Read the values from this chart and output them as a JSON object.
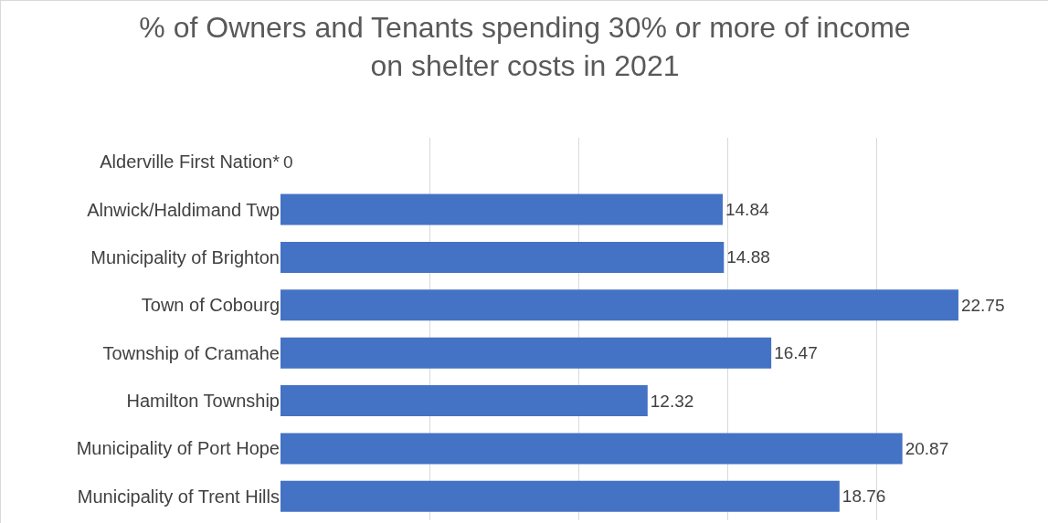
{
  "chart_data": {
    "type": "bar",
    "orientation": "horizontal",
    "title": "% of Owners and Tenants spending 30% or more of income\non shelter costs in 2021",
    "categories": [
      "Alderville First Nation*",
      "Alnwick/Haldimand Twp",
      "Municipality of Brighton",
      "Town of Cobourg",
      "Township of Cramahe",
      "Hamilton Township",
      "Municipality of Port Hope",
      "Municipality of Trent Hills"
    ],
    "values": [
      0,
      14.84,
      14.88,
      22.75,
      16.47,
      12.32,
      20.87,
      18.76
    ],
    "color": "#4472c4",
    "data_labels": true,
    "grid": "x",
    "tick_labels": "y"
  }
}
